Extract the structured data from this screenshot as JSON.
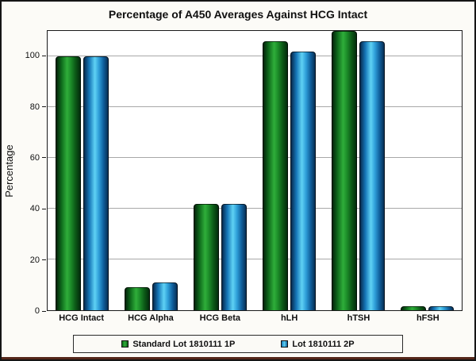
{
  "chart_data": {
    "type": "bar",
    "title": "Percentage of A450 Averages Against HCG Intact",
    "ylabel": "Percentage",
    "xlabel": "",
    "ylim": [
      0,
      110
    ],
    "yticks": [
      0,
      20,
      40,
      60,
      80,
      100
    ],
    "grid": true,
    "legend_position": "bottom",
    "categories": [
      "HCG Intact",
      "HCG Alpha",
      "HCG Beta",
      "hLH",
      "hTSH",
      "hFSH"
    ],
    "series": [
      {
        "name": "Standard Lot 1810111 1P",
        "color": "#1d8f2a",
        "values": [
          100,
          9,
          42,
          106,
          110,
          1.5
        ]
      },
      {
        "name": "Lot 1810111 2P",
        "color": "#2f9fd9",
        "values": [
          100,
          11,
          42,
          102,
          106,
          1.5
        ]
      }
    ]
  }
}
